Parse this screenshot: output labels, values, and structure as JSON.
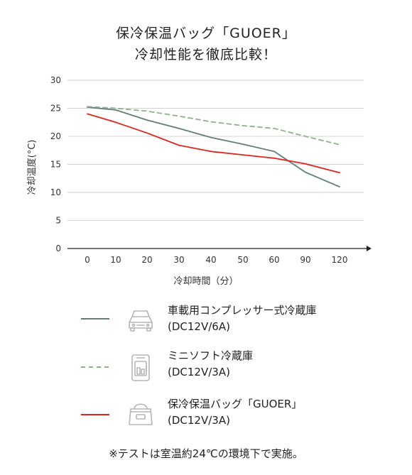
{
  "title": {
    "line1": "保冷保温バッグ「GUOER」",
    "line2": "冷却性能を徹底比較！"
  },
  "chart_data": {
    "type": "line",
    "xlabel": "冷却時間（分）",
    "ylabel": "冷却温度(°C)",
    "categories": [
      "0",
      "10",
      "20",
      "30",
      "40",
      "50",
      "60",
      "90",
      "120"
    ],
    "ylim": [
      0,
      30
    ],
    "yticks": [
      "0",
      "5",
      "10",
      "15",
      "20",
      "25",
      "30"
    ],
    "grid": true,
    "series": [
      {
        "key": "car",
        "name": "車載用コンプレッサー式冷蔵庫",
        "name_sub": "(DC12V/6A)",
        "color": "#5f7f73",
        "dash": "",
        "x": [
          0,
          10,
          20,
          30,
          40,
          50,
          60,
          90,
          120
        ],
        "values": [
          25.2,
          24.7,
          22.9,
          21.4,
          19.8,
          18.6,
          17.3,
          13.6,
          11.0
        ]
      },
      {
        "key": "mini",
        "name": "ミニソフト冷蔵庫",
        "name_sub": "(DC12V/3A)",
        "color": "#8fb08a",
        "dash": "6,5",
        "x": [
          0,
          10,
          20,
          30,
          40,
          50,
          60,
          90,
          120
        ],
        "values": [
          25.3,
          25.0,
          24.5,
          23.6,
          22.6,
          21.9,
          21.4,
          20.0,
          18.5
        ]
      },
      {
        "key": "bag",
        "name": "保冷保温バッグ「GUOER」",
        "name_sub": "(DC12V/3A)",
        "color": "#e2231a",
        "dash": "",
        "x": [
          0,
          10,
          20,
          30,
          40,
          50,
          60,
          90,
          120
        ],
        "values": [
          24.0,
          22.5,
          20.6,
          18.4,
          17.3,
          16.7,
          16.1,
          15.1,
          13.5
        ]
      }
    ]
  },
  "legend": [
    {
      "name": "車載用コンプレッサー式冷蔵庫",
      "sub": "(DC12V/6A)",
      "icon": "car-icon"
    },
    {
      "name": "ミニソフト冷蔵庫",
      "sub": "(DC12V/3A)",
      "icon": "mini-fridge-icon"
    },
    {
      "name": "保冷保温バッグ「GUOER」",
      "sub": "(DC12V/3A)",
      "icon": "cooler-bag-icon"
    }
  ],
  "footnote": "※テストは室温約24℃の環境下で実施。"
}
